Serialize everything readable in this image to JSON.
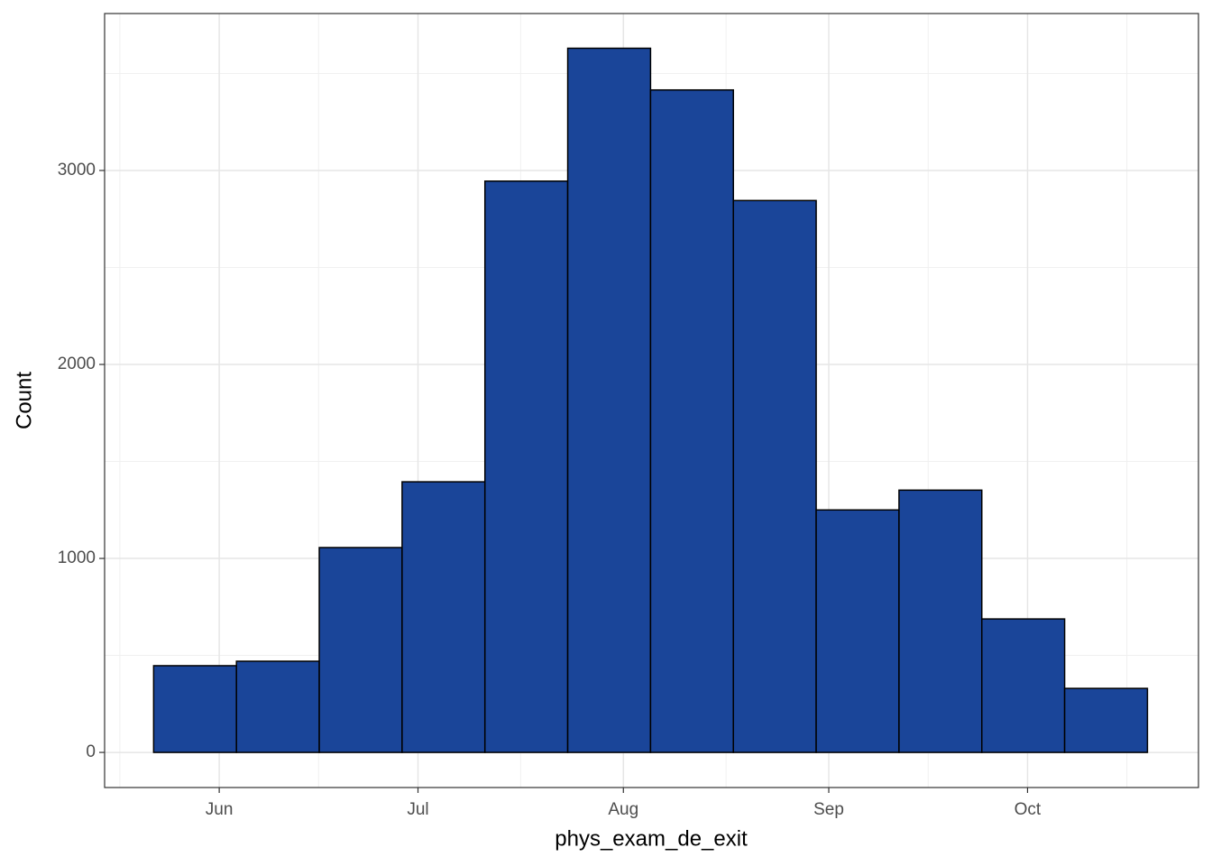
{
  "chart_data": {
    "type": "histogram",
    "x_label": "phys_exam_de_exit",
    "y_label": "Count",
    "bins": [
      -9.9,
      2.6,
      15.1,
      27.6,
      40.1,
      52.6,
      65.1,
      77.6,
      90.1,
      102.6,
      115.1,
      127.6,
      140.1
    ],
    "values": [
      447,
      470,
      1056,
      1395,
      2945,
      3630,
      3415,
      2845,
      1250,
      1352,
      688,
      330
    ],
    "color": "#1a4599",
    "edge_color": "#000000",
    "xlim": [
      -17.3,
      147.8
    ],
    "xticks": [
      {
        "value": 0,
        "label": "Jun"
      },
      {
        "value": 30,
        "label": "Jul"
      },
      {
        "value": 61,
        "label": "Aug"
      },
      {
        "value": 92,
        "label": "Sep"
      },
      {
        "value": 122,
        "label": "Oct"
      }
    ],
    "ylim": [
      -181,
      3809
    ],
    "yticks": [
      0,
      1000,
      2000,
      3000
    ],
    "grid": true
  }
}
